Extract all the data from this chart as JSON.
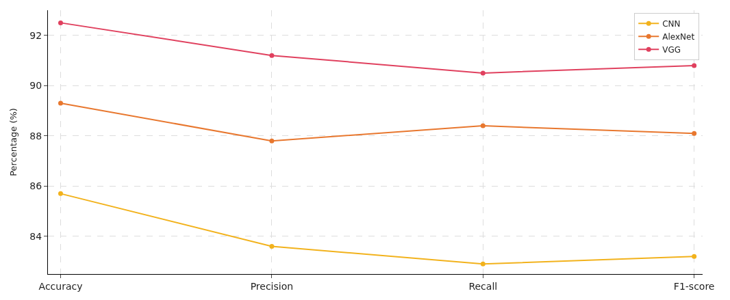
{
  "chart_data": {
    "type": "line",
    "ylabel": "Percentage (%)",
    "categories": [
      "Accuracy",
      "Precision",
      "Recall",
      "F1-score"
    ],
    "series": [
      {
        "name": "CNN",
        "color": "#f2b21c",
        "values": [
          85.7,
          83.6,
          82.9,
          83.2
        ]
      },
      {
        "name": "AlexNet",
        "color": "#e8772e",
        "values": [
          89.3,
          87.8,
          88.4,
          88.1
        ]
      },
      {
        "name": "VGG",
        "color": "#e0405e",
        "values": [
          92.5,
          91.2,
          90.5,
          90.8
        ]
      }
    ],
    "ylim": [
      82.5,
      93
    ],
    "yticks": [
      84,
      86,
      88,
      90,
      92
    ],
    "grid": true,
    "legend": "top right",
    "marker": "circle",
    "line_style": "solid"
  }
}
